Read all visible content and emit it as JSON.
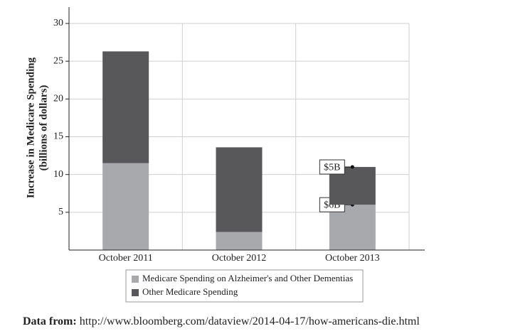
{
  "chart_data": {
    "type": "stacked_bar",
    "y_label": [
      "Increase in Medicare Spending",
      "(billions of dollars)"
    ],
    "categories": [
      "October 2011",
      "October 2012",
      "October 2013"
    ],
    "series": [
      {
        "name": "Medicare Spending on Alzheimer's and Other Dementias",
        "color": "#a8a9ad",
        "values": [
          11.5,
          2.4,
          6
        ],
        "value_labels": [
          null,
          null,
          "$6B"
        ]
      },
      {
        "name": "Other Medicare Spending",
        "color": "#58585a",
        "values": [
          14.8,
          11.2,
          5
        ],
        "value_labels": [
          null,
          null,
          "$5B"
        ]
      }
    ],
    "ylim": [
      0,
      30
    ],
    "yticks": [
      5,
      10,
      15,
      20,
      25,
      30
    ],
    "grid": true,
    "source_label": "Data from:",
    "source_url": "http://www.bloomberg.com/dataview/2014-04-17/how-americans-die.html"
  }
}
